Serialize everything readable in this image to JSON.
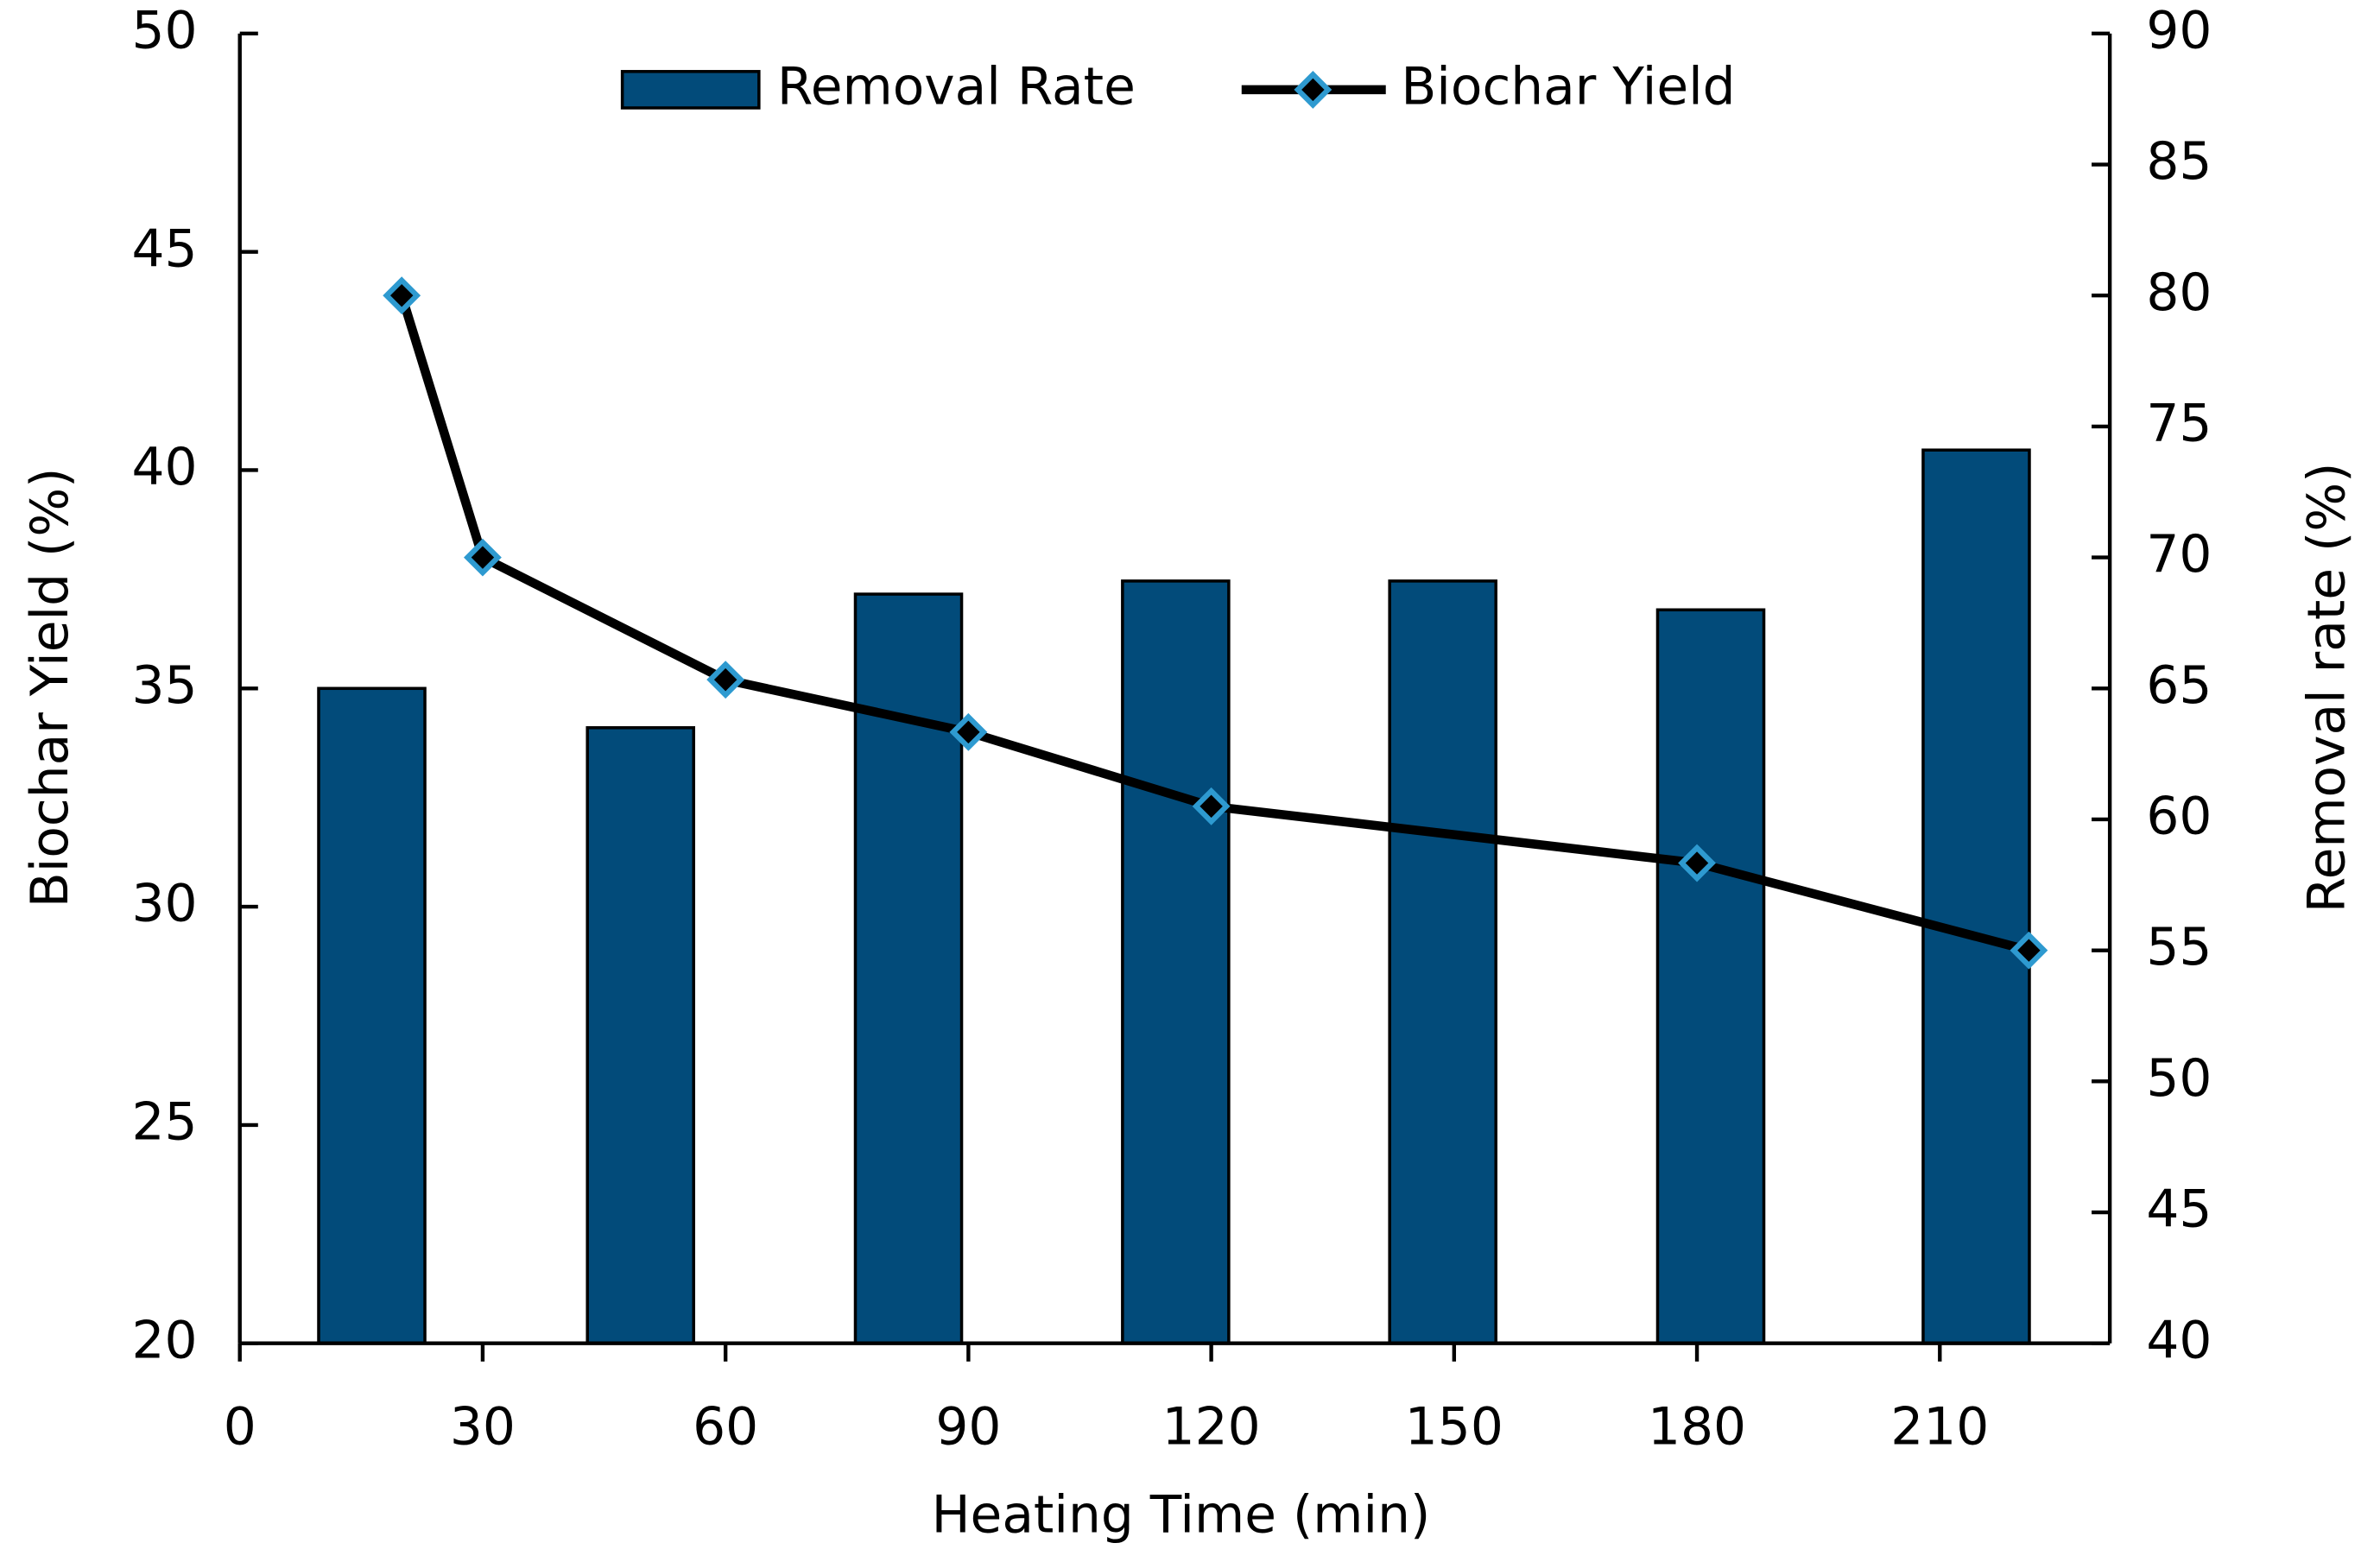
{
  "chart_data": {
    "type": "bar-line",
    "x_label": "Heating Time (min)",
    "y_label": "Biochar Yield (%)",
    "y2_label": "Removal rate (%)",
    "xlim": [
      0,
      231
    ],
    "xticks": [
      0,
      30,
      60,
      90,
      120,
      150,
      180,
      210
    ],
    "ylim": [
      20,
      50
    ],
    "yticks": [
      20,
      25,
      30,
      35,
      40,
      45,
      50
    ],
    "y2lim": [
      40,
      90
    ],
    "y2ticks": [
      40,
      45,
      50,
      55,
      60,
      65,
      70,
      75,
      80,
      85,
      90
    ],
    "legend": "top",
    "series": [
      {
        "name": "Removal Rate",
        "kind": "bar",
        "axis": "y2",
        "color": "#024b7a",
        "x": [
          16.3,
          49.5,
          82.6,
          115.6,
          148.6,
          181.7,
          214.5
        ],
        "values": [
          65.0,
          63.5,
          68.6,
          69.1,
          69.1,
          68.0,
          74.1
        ]
      },
      {
        "name": "Biochar Yield",
        "kind": "line",
        "axis": "y",
        "color": "#000000",
        "marker_color": "#2e9ad0",
        "x": [
          20,
          30,
          60,
          90,
          120,
          180,
          221
        ],
        "values": [
          44.0,
          38.0,
          35.2,
          34.0,
          32.3,
          31.0,
          29.0
        ]
      }
    ]
  }
}
